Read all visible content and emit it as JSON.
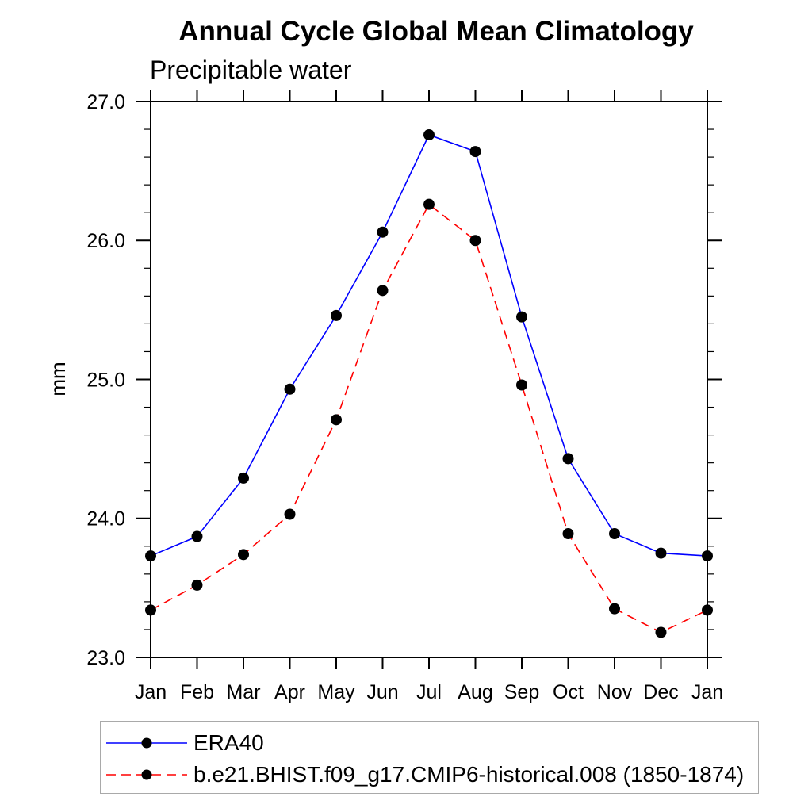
{
  "header": {
    "title": "Annual Cycle Global Mean Climatology"
  },
  "chart_data": {
    "type": "line",
    "title": "Annual Cycle Global Mean Climatology",
    "subtitle_left": "Precipitable water",
    "ylabel": "mm",
    "xlabel": "",
    "categories": [
      "Jan",
      "Feb",
      "Mar",
      "Apr",
      "May",
      "Jun",
      "Jul",
      "Aug",
      "Sep",
      "Oct",
      "Nov",
      "Dec",
      "Jan"
    ],
    "ylim": [
      23.0,
      27.0
    ],
    "y_major_step": 1.0,
    "y_minor_step": 0.2,
    "y_tick_labels": [
      "23.0",
      "24.0",
      "25.0",
      "26.0",
      "27.0"
    ],
    "grid": false,
    "frame_color": "#000000",
    "legend_position": "bottom-left-boxed",
    "series": [
      {
        "name": "ERA40",
        "color": "#0000ff",
        "line_style": "solid",
        "marker": "filled-circle",
        "marker_color": "#000000",
        "values": [
          23.73,
          23.87,
          24.29,
          24.93,
          25.46,
          26.06,
          26.76,
          26.64,
          25.45,
          24.43,
          23.89,
          23.75,
          23.73
        ]
      },
      {
        "name": "b.e21.BHIST.f09_g17.CMIP6-historical.008 (1850-1874)",
        "color": "#ff0000",
        "line_style": "dashed",
        "marker": "filled-circle",
        "marker_color": "#000000",
        "values": [
          23.34,
          23.52,
          23.74,
          24.03,
          24.71,
          25.64,
          26.26,
          26.0,
          24.96,
          23.89,
          23.35,
          23.18,
          23.34
        ]
      }
    ]
  }
}
